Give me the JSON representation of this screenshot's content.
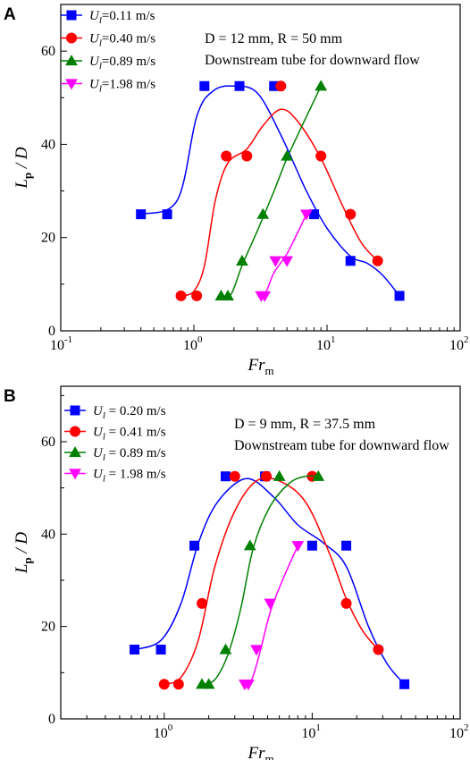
{
  "chart_data": [
    {
      "panel": "A",
      "type": "scatter",
      "xscale": "log",
      "xlim": [
        0.1,
        100
      ],
      "ylim": [
        0,
        70
      ],
      "xlabel": {
        "main": "Fr",
        "sub": "m"
      },
      "ylabel": {
        "main": "L",
        "sub": "p",
        "rest": " / D"
      },
      "x_tick_labels": [
        {
          "base": "10",
          "exp": "-1",
          "value": 0.1
        },
        {
          "base": "10",
          "exp": "0",
          "value": 1
        },
        {
          "base": "10",
          "exp": "1",
          "value": 10
        },
        {
          "base": "10",
          "exp": "2",
          "value": 100
        }
      ],
      "y_ticks": [
        0,
        20,
        40,
        60
      ],
      "annotations": [
        "D = 12 mm, R = 50 mm",
        "Downstream tube for downward flow"
      ],
      "legend_position": "top-left",
      "series": [
        {
          "name": "U_l=0.11 m/s",
          "label_main": "U",
          "label_sub": "l",
          "label_rest": "=0.11 m/s",
          "color": "#0000ff",
          "marker": "square",
          "points": [
            [
              0.4,
              25
            ],
            [
              0.63,
              25
            ],
            [
              1.2,
              52.5
            ],
            [
              2.2,
              52.5
            ],
            [
              4.0,
              52.5
            ],
            [
              8.0,
              25
            ],
            [
              15,
              15
            ],
            [
              35,
              7.5
            ]
          ],
          "fit": [
            [
              0.4,
              25
            ],
            [
              0.75,
              28
            ],
            [
              1.05,
              46
            ],
            [
              1.4,
              51.5
            ],
            [
              2.0,
              52.5
            ],
            [
              3.0,
              51
            ],
            [
              4.5,
              42
            ],
            [
              7.0,
              30
            ],
            [
              10,
              22
            ],
            [
              15,
              16
            ],
            [
              20,
              14.5
            ],
            [
              26,
              12
            ],
            [
              35,
              7.5
            ]
          ]
        },
        {
          "name": "U_l=0.40 m/s",
          "label_main": "U",
          "label_sub": "l",
          "label_rest": "=0.40 m/s",
          "color": "#ff0000",
          "marker": "circle",
          "points": [
            [
              0.8,
              7.5
            ],
            [
              1.05,
              7.5
            ],
            [
              1.75,
              37.5
            ],
            [
              2.5,
              37.5
            ],
            [
              4.5,
              52.5
            ],
            [
              9.0,
              37.5
            ],
            [
              15,
              25
            ],
            [
              24,
              15
            ]
          ],
          "fit": [
            [
              0.8,
              7.5
            ],
            [
              1.0,
              8.5
            ],
            [
              1.2,
              14
            ],
            [
              1.45,
              28
            ],
            [
              1.8,
              36
            ],
            [
              2.5,
              39
            ],
            [
              3.3,
              44
            ],
            [
              4.5,
              47.5
            ],
            [
              6.0,
              45
            ],
            [
              9.0,
              37
            ],
            [
              13,
              27
            ],
            [
              18,
              19
            ],
            [
              24,
              15
            ]
          ]
        },
        {
          "name": "U_l=0.89 m/s",
          "label_main": "U",
          "label_sub": "l",
          "label_rest": "=0.89 m/s",
          "color": "#008000",
          "marker": "triangle-up",
          "points": [
            [
              1.6,
              7.5
            ],
            [
              1.8,
              7.5
            ],
            [
              2.3,
              15
            ],
            [
              3.3,
              25
            ],
            [
              5.0,
              37.5
            ],
            [
              9.0,
              52.5
            ]
          ],
          "fit": [
            [
              1.6,
              7.5
            ],
            [
              1.9,
              7.8
            ],
            [
              2.3,
              14
            ],
            [
              3.0,
              21.5
            ],
            [
              4.0,
              30
            ],
            [
              5.0,
              37
            ],
            [
              6.5,
              44
            ],
            [
              9.0,
              52.5
            ]
          ]
        },
        {
          "name": "U_l=1.98 m/s",
          "label_main": "U",
          "label_sub": "l",
          "label_rest": "=1.98 m/s",
          "color": "#ff00ff",
          "marker": "triangle-down",
          "points": [
            [
              3.2,
              7.5
            ],
            [
              3.4,
              7.5
            ],
            [
              4.1,
              15
            ],
            [
              5.0,
              15
            ],
            [
              7.0,
              25
            ]
          ],
          "fit": [
            [
              3.2,
              7.5
            ],
            [
              3.5,
              8.5
            ],
            [
              4.0,
              12.5
            ],
            [
              5.0,
              16.5
            ],
            [
              6.0,
              21
            ],
            [
              7.0,
              25
            ]
          ]
        }
      ]
    },
    {
      "panel": "B",
      "type": "scatter",
      "xscale": "log",
      "xlim": [
        0.2,
        100
      ],
      "ylim": [
        0,
        72
      ],
      "xlabel": {
        "main": "Fr",
        "sub": "m"
      },
      "ylabel": {
        "main": "L",
        "sub": "p",
        "rest": " / D"
      },
      "x_tick_labels": [
        {
          "base": "10",
          "exp": "0",
          "value": 1
        },
        {
          "base": "10",
          "exp": "1",
          "value": 10
        },
        {
          "base": "10",
          "exp": "2",
          "value": 100
        }
      ],
      "y_ticks": [
        0,
        20,
        40,
        60
      ],
      "annotations": [
        "D = 9 mm, R = 37.5 mm",
        "Downstream tube for downward flow"
      ],
      "legend_position": "top-left",
      "series": [
        {
          "name": "U_l = 0.20 m/s",
          "label_main": "U",
          "label_sub": "l",
          "label_rest": " = 0.20 m/s",
          "color": "#0000ff",
          "marker": "square",
          "points": [
            [
              0.63,
              15
            ],
            [
              0.95,
              15
            ],
            [
              1.6,
              37.5
            ],
            [
              2.6,
              52.5
            ],
            [
              4.8,
              52.5
            ],
            [
              10,
              37.5
            ],
            [
              17,
              37.5
            ],
            [
              42,
              7.5
            ]
          ],
          "fit": [
            [
              0.63,
              15
            ],
            [
              0.95,
              17
            ],
            [
              1.3,
              25
            ],
            [
              1.7,
              38
            ],
            [
              2.3,
              47
            ],
            [
              3.6,
              52
            ],
            [
              5.5,
              48
            ],
            [
              8.0,
              42
            ],
            [
              12,
              38
            ],
            [
              17,
              33
            ],
            [
              24,
              20
            ],
            [
              32,
              12
            ],
            [
              42,
              7.5
            ]
          ]
        },
        {
          "name": "U_l = 0.41 m/s",
          "label_main": "U",
          "label_sub": "l",
          "label_rest": " = 0.41 m/s",
          "color": "#ff0000",
          "marker": "circle",
          "points": [
            [
              1.0,
              7.5
            ],
            [
              1.25,
              7.5
            ],
            [
              1.8,
              25
            ],
            [
              3.0,
              52.5
            ],
            [
              4.9,
              52.5
            ],
            [
              10,
              52.5
            ],
            [
              17,
              25
            ],
            [
              28,
              15
            ]
          ],
          "fit": [
            [
              1.0,
              7.5
            ],
            [
              1.3,
              9
            ],
            [
              1.7,
              17
            ],
            [
              2.2,
              33
            ],
            [
              3.0,
              45
            ],
            [
              4.2,
              51.5
            ],
            [
              6.0,
              51.5
            ],
            [
              9.0,
              47
            ],
            [
              13,
              36
            ],
            [
              17,
              26
            ],
            [
              22,
              19
            ],
            [
              28,
              15
            ]
          ]
        },
        {
          "name": "U_l = 0.89 m/s",
          "label_main": "U",
          "label_sub": "l",
          "label_rest": " = 0.89 m/s",
          "color": "#008000",
          "marker": "triangle-up",
          "points": [
            [
              1.8,
              7.5
            ],
            [
              2.0,
              7.5
            ],
            [
              2.6,
              15
            ],
            [
              3.8,
              37.5
            ],
            [
              6.0,
              52.5
            ],
            [
              11,
              52.5
            ]
          ],
          "fit": [
            [
              1.8,
              7.5
            ],
            [
              2.2,
              8.5
            ],
            [
              2.7,
              14
            ],
            [
              3.3,
              24
            ],
            [
              4.0,
              37
            ],
            [
              5.2,
              46
            ],
            [
              7.0,
              51
            ],
            [
              9.0,
              52.5
            ],
            [
              11,
              52.5
            ]
          ]
        },
        {
          "name": "U_l = 1.98 m/s",
          "label_main": "U",
          "label_sub": "l",
          "label_rest": " = 1.98 m/s",
          "color": "#ff00ff",
          "marker": "triangle-down",
          "points": [
            [
              3.5,
              7.5
            ],
            [
              3.7,
              7.5
            ],
            [
              4.2,
              15
            ],
            [
              5.2,
              25
            ],
            [
              8.0,
              37.5
            ]
          ],
          "fit": [
            [
              3.5,
              7.5
            ],
            [
              3.9,
              8.5
            ],
            [
              4.4,
              14
            ],
            [
              5.2,
              23
            ],
            [
              6.3,
              30
            ],
            [
              8.0,
              37.5
            ]
          ]
        }
      ]
    }
  ]
}
